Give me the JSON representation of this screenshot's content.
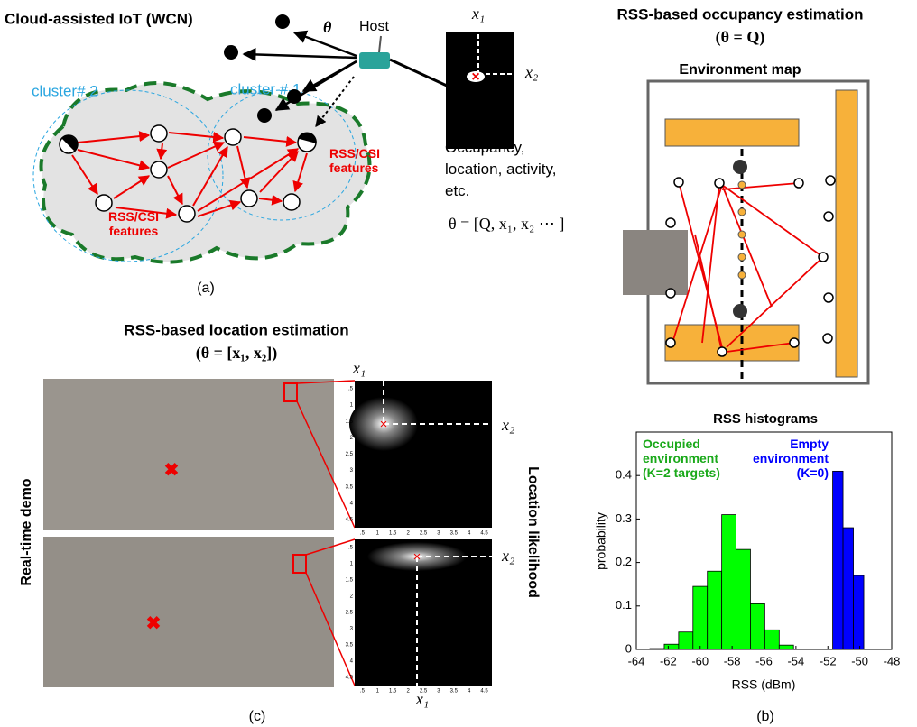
{
  "panel_a": {
    "title": "Cloud-assisted IoT (WCN)",
    "host": "Host",
    "theta": "θ",
    "cluster_2": "cluster# 2",
    "cluster_1": "cluster # 1",
    "features_right": "RSS/CSI features",
    "features_left": "RSS/CSI features",
    "x1": "x₁",
    "x2": "x₂",
    "estimates": "Occupancy, location, activity, etc.",
    "parameter": "θ = [Q, x₁, x₂ ⋯ ]",
    "caption": "(a)"
  },
  "panel_b": {
    "title": "RSS-based occupancy estimation",
    "subtitle": "(θ = Q)",
    "map_title": "Environment map",
    "caption": "(b)"
  },
  "chart_data": {
    "type": "histogram",
    "title": "RSS histograms",
    "x_label": "RSS (dBm)",
    "y_label": "probability",
    "xlim": [
      -64,
      -48
    ],
    "xticks": [
      -64,
      -62,
      -60,
      -58,
      -56,
      -54,
      -52,
      -50,
      -48
    ],
    "ylim": [
      0,
      0.5
    ],
    "yticks": [
      0,
      0.1,
      0.2,
      0.3,
      0.4
    ],
    "series": [
      {
        "name": "Occupied environment (K=2 targets)",
        "color": "#00ff00",
        "bins": [
          -63.15,
          -62.25,
          -61.35,
          -60.45,
          -59.55,
          -58.65,
          -57.75,
          -56.85,
          -55.95,
          -55.05,
          -54.15
        ],
        "values": [
          0.002,
          0.012,
          0.04,
          0.145,
          0.18,
          0.31,
          0.23,
          0.105,
          0.045,
          0.01
        ]
      },
      {
        "name": "Empty environment (K=0)",
        "color": "#0000ff",
        "bins": [
          -51.7,
          -51.05,
          -50.4,
          -49.75
        ],
        "values": [
          0.41,
          0.28,
          0.17
        ]
      }
    ]
  },
  "panel_c": {
    "title": "RSS-based location estimation",
    "subtitle": "(θ = [x₁, x₂])",
    "left_label": "Real-time demo",
    "right_label": "Location likelihood",
    "top_x1": "x₁",
    "top_x2": "x₂",
    "bottom_x2": "x₂",
    "bottom_x1": "x₁",
    "heatmap_ticks": [
      ".5",
      "1",
      "1.5",
      "2",
      "2.5",
      "3",
      "3.5",
      "4",
      "4.5"
    ],
    "caption": "(c)"
  }
}
